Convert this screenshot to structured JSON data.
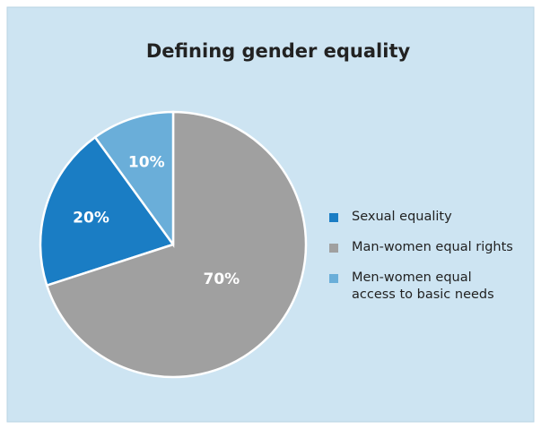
{
  "chart_data": {
    "type": "pie",
    "title": "Defining gender equality",
    "series": [
      {
        "name": "Sexual equality",
        "color": "#1a7dc4",
        "value": 20,
        "value_label": "20%"
      },
      {
        "name": "Man-women equal rights",
        "color": "#a0a0a0",
        "value": 70,
        "value_label": "70%"
      },
      {
        "name": "Men-women equal\naccess to basic needs",
        "color": "#6aaed9",
        "value": 10,
        "value_label": "10%"
      }
    ]
  }
}
